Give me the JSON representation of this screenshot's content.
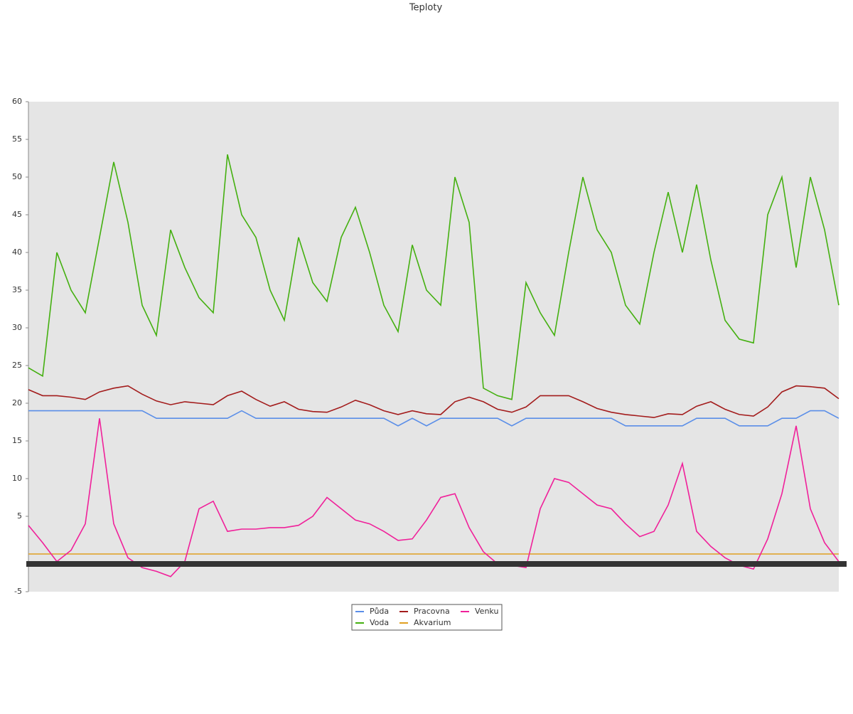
{
  "chart_data": {
    "type": "line",
    "title": "Teploty",
    "ylim": [
      -5,
      60
    ],
    "yticks": [
      -5,
      5,
      10,
      15,
      20,
      25,
      30,
      35,
      40,
      45,
      50,
      55,
      60
    ],
    "series": [
      {
        "name": "Půda",
        "color": "#5a8ee8",
        "values": [
          19,
          19,
          19,
          19,
          19,
          19,
          19,
          19,
          19,
          18,
          18,
          18,
          18,
          18,
          18,
          19,
          18,
          18,
          18,
          18,
          18,
          18,
          18,
          18,
          18,
          18,
          17,
          18,
          17,
          18,
          18,
          18,
          18,
          18,
          17,
          18,
          18,
          18,
          18,
          18,
          18,
          18,
          17,
          17,
          17,
          17,
          17,
          18,
          18,
          18,
          17,
          17,
          17,
          18,
          18,
          19,
          19,
          18
        ]
      },
      {
        "name": "Voda",
        "color": "#44b010",
        "values": [
          24.7,
          23.6,
          40,
          35,
          32,
          42,
          52,
          44,
          33,
          29,
          43,
          38,
          34,
          32,
          53,
          45,
          42,
          35,
          31,
          42,
          36,
          33.5,
          42,
          46,
          40,
          33,
          29.5,
          41,
          35,
          33,
          50,
          44,
          22,
          21,
          20.5,
          36,
          32,
          29,
          40,
          50,
          43,
          40,
          33,
          30.5,
          40,
          48,
          40,
          49,
          39,
          31,
          28.5,
          28,
          45,
          50,
          38,
          50,
          43,
          33
        ]
      },
      {
        "name": "Pracovna",
        "color": "#a31c1c",
        "values": [
          21.8,
          21,
          21,
          20.8,
          20.5,
          21.5,
          22,
          22.3,
          21.2,
          20.3,
          19.8,
          20.2,
          20,
          19.8,
          21,
          21.6,
          20.5,
          19.6,
          20.2,
          19.2,
          18.9,
          18.8,
          19.5,
          20.4,
          19.8,
          19,
          18.5,
          19,
          18.6,
          18.5,
          20.2,
          20.8,
          20.2,
          19.2,
          18.8,
          19.5,
          21,
          21,
          21,
          20.2,
          19.3,
          18.8,
          18.5,
          18.3,
          18.1,
          18.6,
          18.5,
          19.6,
          20.2,
          19.2,
          18.5,
          18.3,
          19.5,
          21.5,
          22.3,
          22.2,
          22,
          20.6
        ]
      },
      {
        "name": "Akvarium",
        "color": "#e0a020",
        "values": [
          0,
          0,
          0,
          0,
          0,
          0,
          0,
          0,
          0,
          0,
          0,
          0,
          0,
          0,
          0,
          0,
          0,
          0,
          0,
          0,
          0,
          0,
          0,
          0,
          0,
          0,
          0,
          0,
          0,
          0,
          0,
          0,
          0,
          0,
          0,
          0,
          0,
          0,
          0,
          0,
          0,
          0,
          0,
          0,
          0,
          0,
          0,
          0,
          0,
          0,
          0,
          0,
          0,
          0,
          0,
          0,
          0,
          0
        ]
      },
      {
        "name": "Venku",
        "color": "#f0209a",
        "values": [
          3.8,
          1.5,
          -1,
          0.5,
          4,
          18,
          4,
          -0.5,
          -1.8,
          -2.3,
          -3,
          -1,
          6,
          7,
          3,
          3.3,
          3.3,
          3.5,
          3.5,
          3.8,
          5,
          7.5,
          6,
          4.5,
          4,
          3,
          1.8,
          2,
          4.5,
          7.5,
          8,
          3.5,
          0.3,
          -1.3,
          -1.5,
          -1.8,
          6,
          10,
          9.5,
          8,
          6.5,
          6,
          4,
          2.3,
          3,
          6.5,
          12,
          3,
          1,
          -0.5,
          -1.5,
          -2,
          2,
          8,
          17,
          6,
          1.5,
          -1
        ]
      }
    ]
  }
}
